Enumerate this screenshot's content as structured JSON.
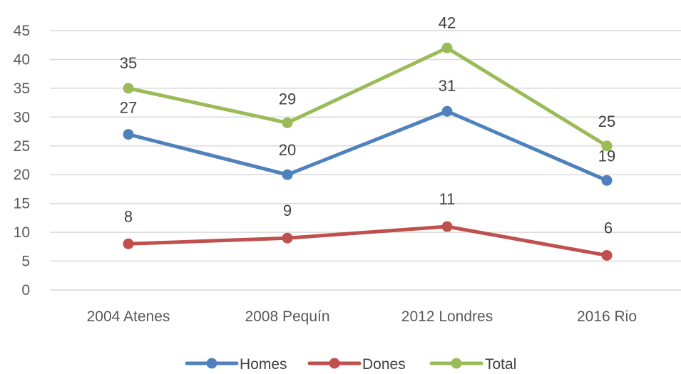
{
  "chart_data": {
    "type": "line",
    "title": "",
    "xlabel": "",
    "ylabel": "",
    "categories": [
      "2004 Atenes",
      "2008 Pequín",
      "2012 Londres",
      "2016 Rio"
    ],
    "y_ticks": [
      "0",
      "5",
      "10",
      "15",
      "20",
      "25",
      "30",
      "35",
      "40",
      "45"
    ],
    "ylim": [
      0,
      45
    ],
    "grid": true,
    "legend_position": "bottom",
    "series": [
      {
        "name": "Homes",
        "color": "#4f81bd",
        "values": [
          27,
          20,
          31,
          19
        ],
        "labels": [
          "27",
          "20",
          "31",
          "19"
        ]
      },
      {
        "name": "Dones",
        "color": "#c0504d",
        "values": [
          8,
          9,
          11,
          6
        ],
        "labels": [
          "8",
          "9",
          "11",
          "6"
        ]
      },
      {
        "name": "Total",
        "color": "#9bbb59",
        "values": [
          35,
          29,
          42,
          25
        ],
        "labels": [
          "35",
          "29",
          "42",
          "25"
        ]
      }
    ]
  }
}
